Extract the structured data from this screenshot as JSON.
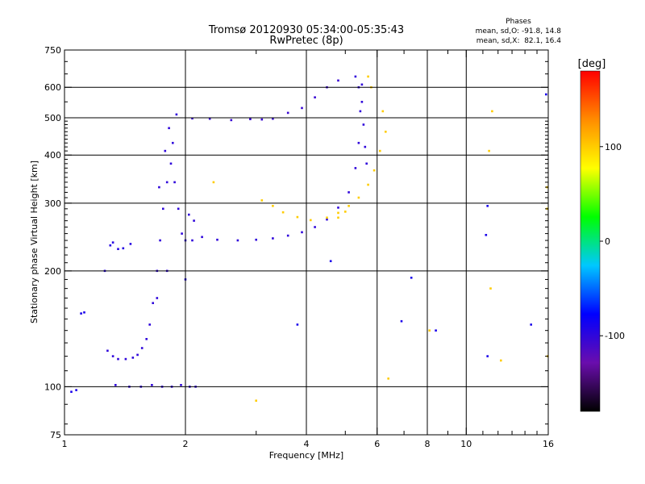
{
  "chart_data": {
    "type": "scatter",
    "title": "Tromsø 20120930 05:34:00-05:35:43",
    "subtitle": "RwPretec (8p)",
    "xlabel": "Frequency [MHz]",
    "ylabel": "Stationary phase Virtual Height [km]",
    "x_scale": "log",
    "y_scale": "log",
    "xlim": [
      1,
      16
    ],
    "ylim": [
      75,
      750
    ],
    "grid": true,
    "x_ticks": [
      1,
      2,
      4,
      6,
      8,
      10,
      16
    ],
    "y_ticks": [
      75,
      100,
      200,
      300,
      400,
      500,
      600,
      750
    ],
    "stats": {
      "header": "Phases",
      "line_o": "mean, sd,O: -91.8, 14.8",
      "line_x": "mean, sd,X:  82.1, 16.4"
    },
    "colorbar": {
      "label": "[deg]",
      "range": [
        -180,
        180
      ],
      "ticks": [
        100,
        0,
        -100
      ],
      "colors": [
        "#000000",
        "#6a0dad",
        "#0000ff",
        "#00c8ff",
        "#00ff00",
        "#ffff00",
        "#ff8c00",
        "#ff0000"
      ]
    },
    "series": [
      {
        "points": [
          [
            1.04,
            97,
            -90
          ],
          [
            1.07,
            98,
            -90
          ],
          [
            1.1,
            155,
            -90
          ],
          [
            1.12,
            156,
            -90
          ],
          [
            1.26,
            200,
            -95
          ],
          [
            1.3,
            233,
            -95
          ],
          [
            1.32,
            237,
            -95
          ],
          [
            1.36,
            228,
            -95
          ],
          [
            1.4,
            229,
            -95
          ],
          [
            1.46,
            235,
            -95
          ],
          [
            1.28,
            124,
            -100
          ],
          [
            1.32,
            120,
            -100
          ],
          [
            1.36,
            118,
            -100
          ],
          [
            1.42,
            118,
            -100
          ],
          [
            1.48,
            119,
            -100
          ],
          [
            1.52,
            121,
            -100
          ],
          [
            1.56,
            126,
            -100
          ],
          [
            1.6,
            133,
            -100
          ],
          [
            1.63,
            145,
            -100
          ],
          [
            1.66,
            165,
            -100
          ],
          [
            1.7,
            200,
            -100
          ],
          [
            1.73,
            240,
            -100
          ],
          [
            1.76,
            290,
            -100
          ],
          [
            1.8,
            340,
            -100
          ],
          [
            1.84,
            380,
            -100
          ],
          [
            1.88,
            340,
            -100
          ],
          [
            1.92,
            290,
            -100
          ],
          [
            1.96,
            250,
            -100
          ],
          [
            2.0,
            240,
            -100
          ],
          [
            2.04,
            280,
            -100
          ],
          [
            2.08,
            240,
            -100
          ],
          [
            2.1,
            270,
            -100
          ],
          [
            1.72,
            330,
            -100
          ],
          [
            1.78,
            410,
            -100
          ],
          [
            1.82,
            470,
            -100
          ],
          [
            1.86,
            430,
            -100
          ],
          [
            1.9,
            510,
            -100
          ],
          [
            1.8,
            200,
            -100
          ],
          [
            1.7,
            170,
            -100
          ],
          [
            1.34,
            101,
            -100
          ],
          [
            1.45,
            100,
            -100
          ],
          [
            1.55,
            100,
            -100
          ],
          [
            1.65,
            101,
            -100
          ],
          [
            1.75,
            100,
            -100
          ],
          [
            1.85,
            100,
            -100
          ],
          [
            1.95,
            101,
            -100
          ],
          [
            2.05,
            100,
            -100
          ],
          [
            2.12,
            100,
            -100
          ],
          [
            2.08,
            498,
            -105
          ],
          [
            2.3,
            497,
            -105
          ],
          [
            2.6,
            493,
            -105
          ],
          [
            2.9,
            496,
            -105
          ],
          [
            3.1,
            495,
            -105
          ],
          [
            3.3,
            497,
            -105
          ],
          [
            3.6,
            515,
            -105
          ],
          [
            3.9,
            530,
            -105
          ],
          [
            4.2,
            565,
            -105
          ],
          [
            4.5,
            600,
            -105
          ],
          [
            4.8,
            625,
            -105
          ],
          [
            2.2,
            245,
            -100
          ],
          [
            2.4,
            241,
            -100
          ],
          [
            2.7,
            240,
            -100
          ],
          [
            3.0,
            241,
            -100
          ],
          [
            3.3,
            243,
            -100
          ],
          [
            3.6,
            247,
            -100
          ],
          [
            3.9,
            252,
            -100
          ],
          [
            4.2,
            260,
            -100
          ],
          [
            4.5,
            272,
            -100
          ],
          [
            4.8,
            292,
            -100
          ],
          [
            5.1,
            320,
            -100
          ],
          [
            5.3,
            370,
            -100
          ],
          [
            5.4,
            430,
            -100
          ],
          [
            5.45,
            520,
            -100
          ],
          [
            5.5,
            610,
            -100
          ],
          [
            5.3,
            640,
            -100
          ],
          [
            5.4,
            600,
            -100
          ],
          [
            5.5,
            550,
            -100
          ],
          [
            5.55,
            480,
            -100
          ],
          [
            5.6,
            420,
            -100
          ],
          [
            5.65,
            380,
            -100
          ],
          [
            3.1,
            305,
            100
          ],
          [
            3.3,
            295,
            100
          ],
          [
            3.5,
            284,
            100
          ],
          [
            3.8,
            276,
            100
          ],
          [
            4.1,
            271,
            100
          ],
          [
            4.5,
            275,
            100
          ],
          [
            4.8,
            283,
            100
          ],
          [
            5.1,
            295,
            100
          ],
          [
            5.4,
            310,
            100
          ],
          [
            5.7,
            335,
            100
          ],
          [
            5.9,
            365,
            100
          ],
          [
            6.1,
            410,
            100
          ],
          [
            6.3,
            460,
            100
          ],
          [
            6.2,
            520,
            100
          ],
          [
            5.8,
            600,
            100
          ],
          [
            5.7,
            640,
            100
          ],
          [
            4.8,
            275,
            100
          ],
          [
            5.0,
            285,
            100
          ],
          [
            7.3,
            192,
            -90
          ],
          [
            8.4,
            140,
            -90
          ],
          [
            6.9,
            148,
            -90
          ],
          [
            11.3,
            120,
            -90
          ],
          [
            14.5,
            145,
            -90
          ],
          [
            15.8,
            575,
            -90
          ],
          [
            3.8,
            145,
            -90
          ],
          [
            4.6,
            212,
            -90
          ],
          [
            11.2,
            248,
            -90
          ],
          [
            11.3,
            295,
            -90
          ],
          [
            2.0,
            190,
            -90
          ],
          [
            11.4,
            410,
            100
          ],
          [
            11.5,
            180,
            100
          ],
          [
            11.6,
            520,
            100
          ],
          [
            12.2,
            117,
            100
          ],
          [
            15.9,
            290,
            100
          ],
          [
            15.9,
            330,
            100
          ],
          [
            6.4,
            105,
            100
          ],
          [
            2.35,
            340,
            100
          ],
          [
            3.0,
            92,
            100
          ],
          [
            8.1,
            140,
            100
          ],
          [
            15.95,
            120,
            100
          ]
        ]
      }
    ]
  }
}
